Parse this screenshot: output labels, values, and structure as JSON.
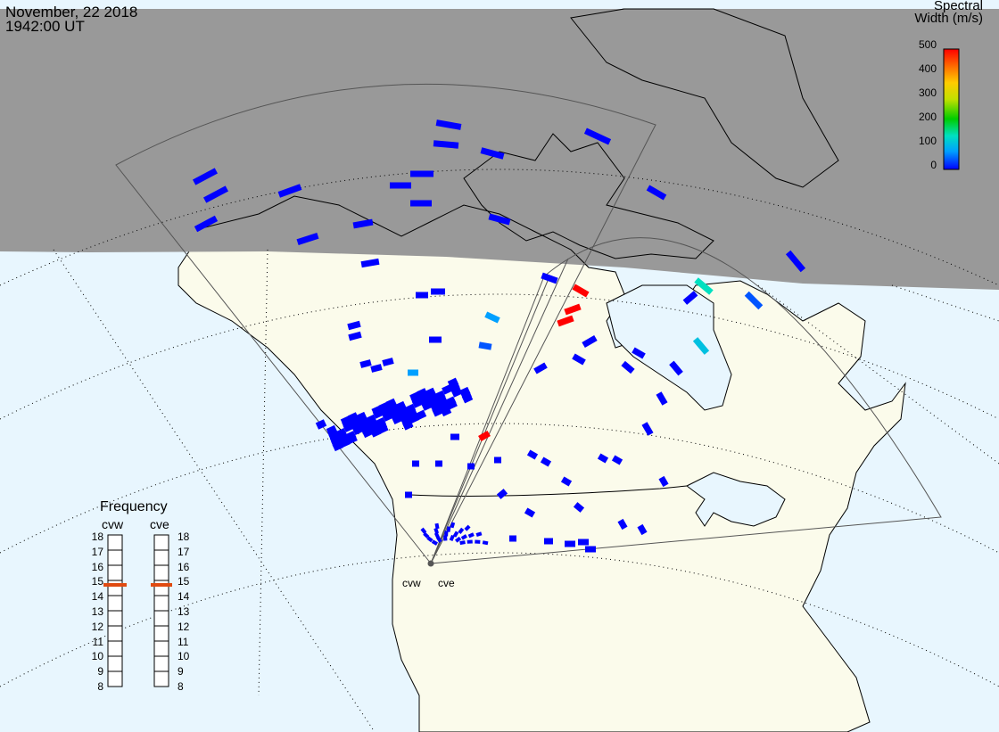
{
  "header": {
    "date": "November, 22 2018",
    "time": "1942:00 UT"
  },
  "colorbar": {
    "title_line1": "Spectral",
    "title_line2": "Width (m/s)",
    "ticks": [
      "500",
      "400",
      "300",
      "200",
      "100",
      "0"
    ],
    "colors": [
      "#0000ff",
      "#00a0ff",
      "#00e0c0",
      "#00cc00",
      "#c0e000",
      "#ffcc00",
      "#ff7000",
      "#ff0000"
    ]
  },
  "frequency": {
    "title": "Frequency",
    "columns": [
      "cvw",
      "cve"
    ],
    "levels": [
      "18",
      "17",
      "16",
      "15",
      "14",
      "13",
      "12",
      "11",
      "10",
      "9",
      "8"
    ],
    "selected": {
      "cvw": "15",
      "cve": "15"
    },
    "marker_color": "#e04a10"
  },
  "stations": [
    "cvw",
    "cve"
  ],
  "map": {
    "night_color": "#999999",
    "ocean_color": "#e8f6fe",
    "land_color": "#fbfbeb",
    "echo_color": "#0000ff"
  }
}
